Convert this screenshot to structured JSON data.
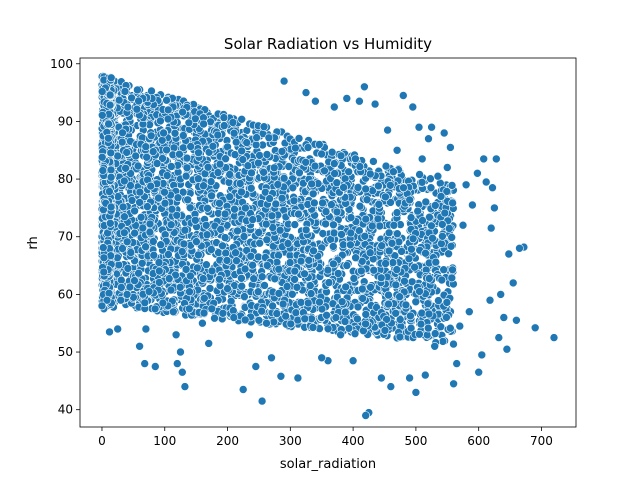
{
  "chart_data": {
    "type": "scatter",
    "title": "Solar Radiation vs Humidity",
    "xlabel": "solar_radiation",
    "ylabel": "rh",
    "xlim": [
      -35,
      755
    ],
    "ylim": [
      37,
      101
    ],
    "xticks": [
      0,
      100,
      200,
      300,
      400,
      500,
      600,
      700
    ],
    "yticks": [
      40,
      50,
      60,
      70,
      80,
      90,
      100
    ],
    "grid": false,
    "legend": "none",
    "marker_color": "#1f77b4",
    "marker_edge_color": "#ffffff",
    "dense_region_note": "points form a dense band; upper boundary ~98 at x=0 falling to ~75 at x=620, lower boundary ~57 at x=0 falling to ~50 at x=600",
    "sparse_points": [
      [
        720,
        52.5
      ],
      [
        690,
        54.2
      ],
      [
        672,
        68.2
      ],
      [
        665,
        68.0
      ],
      [
        660,
        55.5
      ],
      [
        655,
        62.0
      ],
      [
        648,
        67.0
      ],
      [
        645,
        50.5
      ],
      [
        640,
        56.0
      ],
      [
        635,
        60.0
      ],
      [
        632,
        52.5
      ],
      [
        628,
        83.5
      ],
      [
        625,
        75.0
      ],
      [
        622,
        78.5
      ],
      [
        620,
        71.5
      ],
      [
        618,
        59.0
      ],
      [
        612,
        79.5
      ],
      [
        608,
        83.5
      ],
      [
        605,
        49.5
      ],
      [
        600,
        46.5
      ],
      [
        598,
        81.0
      ],
      [
        590,
        75.5
      ],
      [
        585,
        57.0
      ],
      [
        580,
        79.0
      ],
      [
        575,
        72.0
      ],
      [
        570,
        54.5
      ],
      [
        565,
        48.0
      ],
      [
        560,
        44.5
      ],
      [
        555,
        85.5
      ],
      [
        550,
        82.0
      ],
      [
        545,
        88.0
      ],
      [
        540,
        77.0
      ],
      [
        535,
        80.5
      ],
      [
        530,
        51.0
      ],
      [
        525,
        89.0
      ],
      [
        520,
        87.0
      ],
      [
        515,
        46.0
      ],
      [
        510,
        83.5
      ],
      [
        505,
        89.0
      ],
      [
        500,
        43.0
      ],
      [
        495,
        92.5
      ],
      [
        490,
        45.5
      ],
      [
        480,
        94.5
      ],
      [
        470,
        85.0
      ],
      [
        460,
        44.0
      ],
      [
        455,
        88.5
      ],
      [
        445,
        45.5
      ],
      [
        435,
        93.0
      ],
      [
        425,
        39.5
      ],
      [
        420,
        39.0
      ],
      [
        418,
        96.0
      ],
      [
        410,
        93.5
      ],
      [
        400,
        48.5
      ],
      [
        390,
        94.0
      ],
      [
        380,
        53.0
      ],
      [
        370,
        92.5
      ],
      [
        360,
        48.5
      ],
      [
        350,
        49.0
      ],
      [
        340,
        93.5
      ],
      [
        325,
        95.0
      ],
      [
        312,
        45.5
      ],
      [
        290,
        97.0
      ],
      [
        285,
        45.8
      ],
      [
        270,
        49.0
      ],
      [
        262,
        55.0
      ],
      [
        255,
        41.5
      ],
      [
        245,
        47.5
      ],
      [
        235,
        53.0
      ],
      [
        225,
        43.5
      ],
      [
        210,
        56.0
      ],
      [
        200,
        61.0
      ],
      [
        175,
        57.5
      ],
      [
        170,
        51.5
      ],
      [
        160,
        55.0
      ],
      [
        132,
        44.0
      ],
      [
        128,
        46.5
      ],
      [
        125,
        50.0
      ],
      [
        120,
        48.0
      ],
      [
        118,
        53.0
      ],
      [
        105,
        58.0
      ],
      [
        97,
        58.5
      ],
      [
        85,
        47.5
      ],
      [
        75,
        60.5
      ],
      [
        70,
        54.0
      ],
      [
        68,
        48.0
      ],
      [
        60,
        51.0
      ],
      [
        50,
        59.5
      ],
      [
        40,
        60.0
      ],
      [
        30,
        59.0
      ],
      [
        25,
        54.0
      ],
      [
        15,
        58.5
      ],
      [
        12,
        53.5
      ],
      [
        8,
        59.0
      ],
      [
        3,
        57.5
      ],
      [
        0,
        58.0
      ]
    ]
  }
}
